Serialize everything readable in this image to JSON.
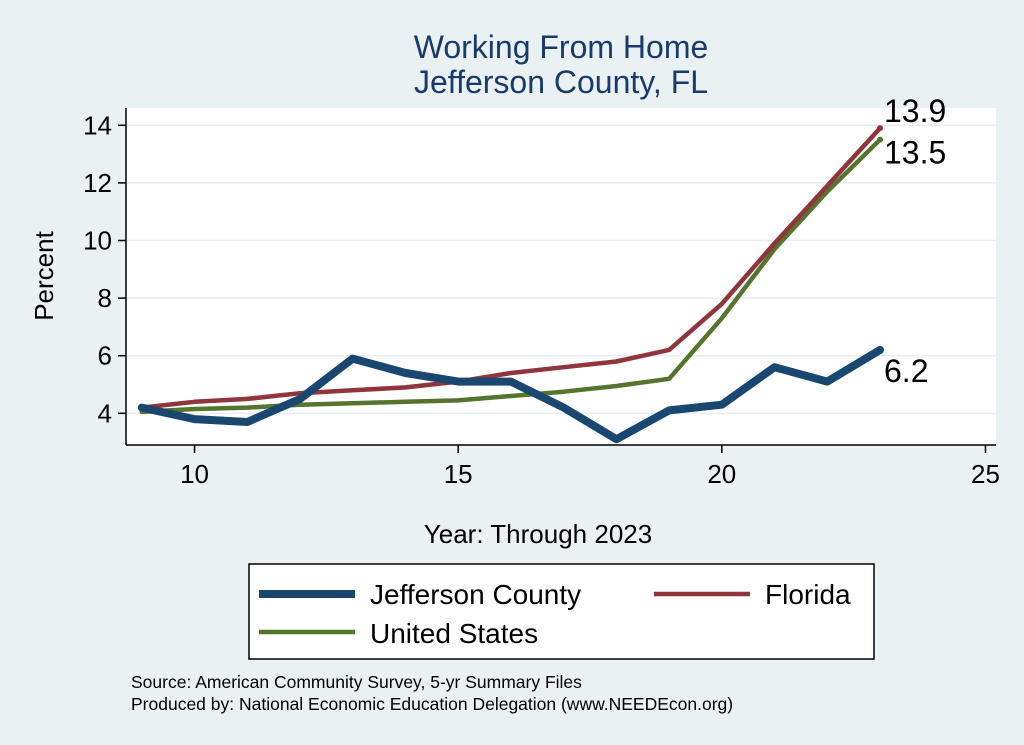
{
  "chart_data": {
    "type": "line",
    "title": [
      "Working From Home",
      "Jefferson County, FL"
    ],
    "xlabel": "Year: Through 2023",
    "ylabel": "Percent",
    "xlim": [
      8.7,
      25.2
    ],
    "ylim": [
      2.9,
      14.6
    ],
    "xticks": [
      10,
      15,
      20,
      25
    ],
    "yticks": [
      4,
      6,
      8,
      10,
      12,
      14
    ],
    "grid": true,
    "x": [
      9,
      10,
      11,
      12,
      13,
      14,
      15,
      16,
      17,
      18,
      19,
      20,
      21,
      22,
      23
    ],
    "series": [
      {
        "name": "Jefferson County",
        "color": "#1a476f",
        "values": [
          4.2,
          3.8,
          3.7,
          4.5,
          5.9,
          5.4,
          5.1,
          5.1,
          4.2,
          3.1,
          4.1,
          4.3,
          5.6,
          5.1,
          6.2
        ],
        "end_label": "6.2"
      },
      {
        "name": "Florida",
        "color": "#90353b",
        "values": [
          4.2,
          4.4,
          4.5,
          4.7,
          4.8,
          4.9,
          5.1,
          5.4,
          5.6,
          5.8,
          6.2,
          7.8,
          9.9,
          11.9,
          13.9
        ],
        "end_label": "13.9"
      },
      {
        "name": "United States",
        "color": "#55752f",
        "values": [
          4.05,
          4.15,
          4.2,
          4.3,
          4.35,
          4.4,
          4.45,
          4.6,
          4.75,
          4.95,
          5.2,
          7.3,
          9.7,
          11.7,
          13.5
        ],
        "end_label": "13.5"
      }
    ],
    "legend": "bottom",
    "source": [
      "Source: American Community Survey, 5-yr Summary Files",
      "Produced by: National Economic Education Delegation (www.NEEDEcon.org)"
    ]
  }
}
